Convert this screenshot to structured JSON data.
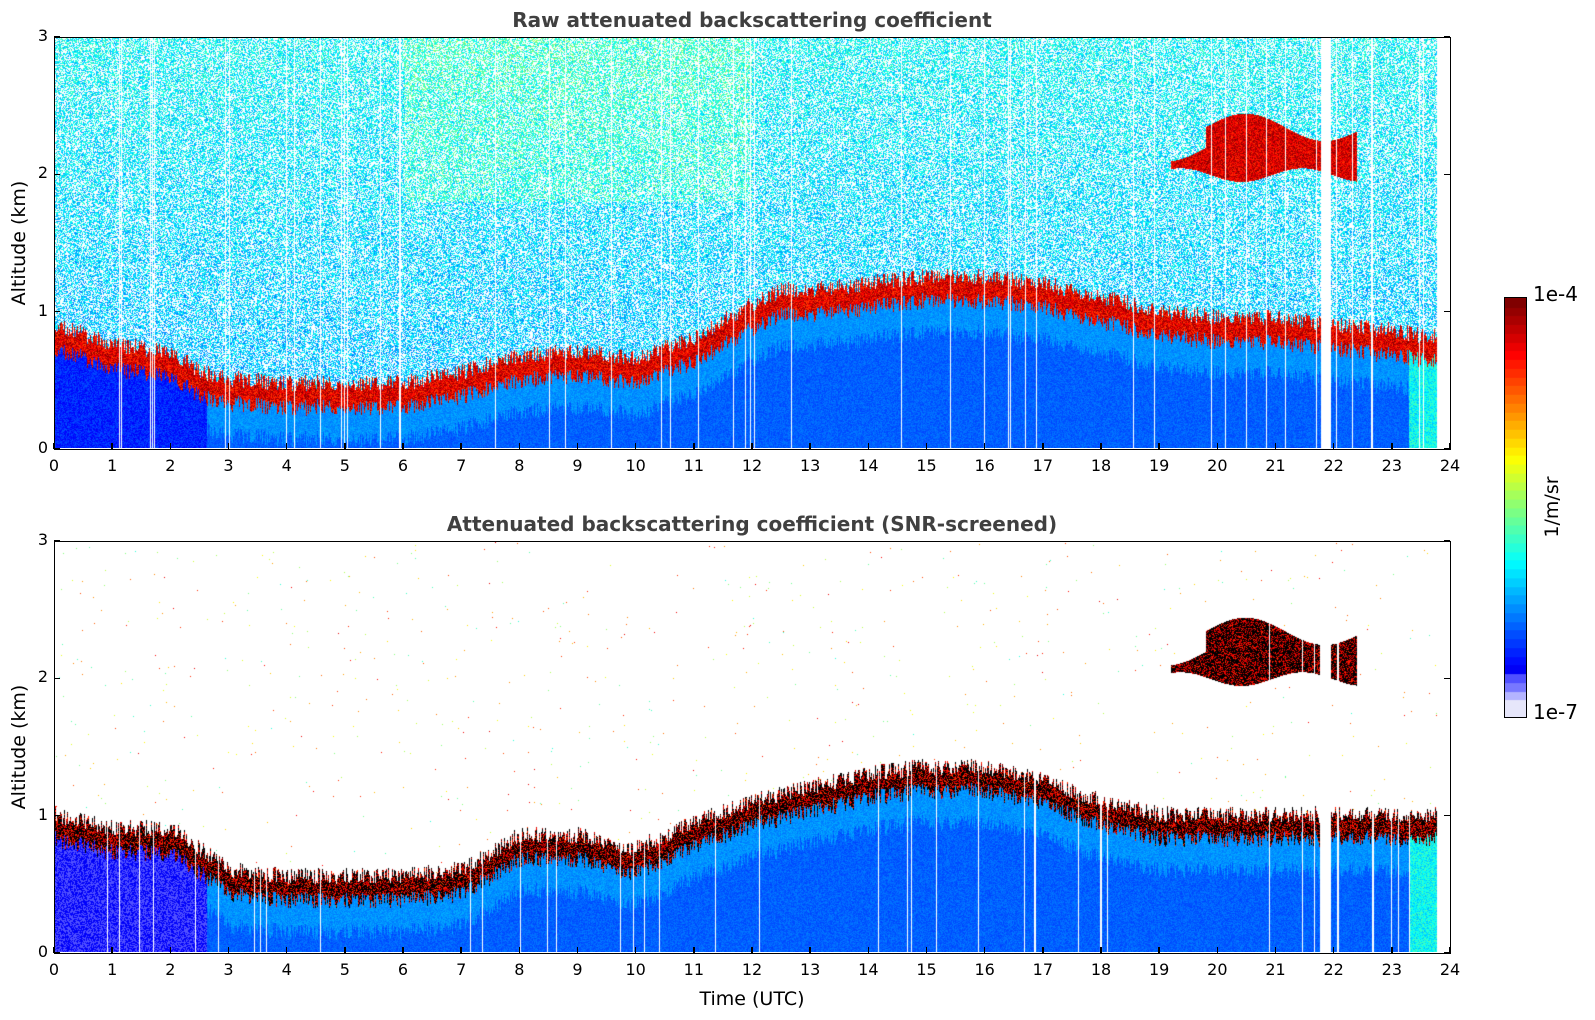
{
  "chart_data": [
    {
      "type": "heatmap",
      "title": "Raw attenuated backscattering coefficient",
      "xlabel": "",
      "ylabel": "Altitude (km)",
      "xlim": [
        0,
        24
      ],
      "ylim": [
        0,
        3
      ],
      "x_ticks": [
        "0",
        "1",
        "2",
        "3",
        "4",
        "5",
        "6",
        "7",
        "8",
        "9",
        "10",
        "11",
        "12",
        "13",
        "14",
        "15",
        "16",
        "17",
        "18",
        "19",
        "20",
        "21",
        "22",
        "23",
        "24"
      ],
      "y_ticks": [
        "0",
        "1",
        "2",
        "3"
      ],
      "data_end_hour": 23.8,
      "boundary_layer_top_km": {
        "hours": [
          0,
          1,
          2,
          2.5,
          3,
          4,
          5,
          6,
          7,
          8,
          9,
          10,
          11,
          12,
          12.5,
          13,
          14,
          15,
          16,
          17,
          18,
          19,
          20,
          21,
          22,
          23,
          23.8
        ],
        "values": [
          0.85,
          0.7,
          0.65,
          0.5,
          0.45,
          0.42,
          0.42,
          0.42,
          0.5,
          0.62,
          0.65,
          0.6,
          0.75,
          1.0,
          1.1,
          1.1,
          1.15,
          1.2,
          1.2,
          1.15,
          1.05,
          0.95,
          0.9,
          0.9,
          0.85,
          0.8,
          0.75
        ]
      },
      "elevated_cloud": {
        "start_hour": 19.2,
        "end_hour": 22.4,
        "altitude_km": [
          2.0,
          2.35
        ]
      },
      "noise": "high"
    },
    {
      "type": "heatmap",
      "title": "Attenuated backscattering coefficient (SNR-screened)",
      "xlabel": "Time (UTC)",
      "ylabel": "Altitude (km)",
      "xlim": [
        0,
        24
      ],
      "ylim": [
        0,
        3
      ],
      "x_ticks": [
        "0",
        "1",
        "2",
        "3",
        "4",
        "5",
        "6",
        "7",
        "8",
        "9",
        "10",
        "11",
        "12",
        "13",
        "14",
        "15",
        "16",
        "17",
        "18",
        "19",
        "20",
        "21",
        "22",
        "23",
        "24"
      ],
      "y_ticks": [
        "0",
        "1",
        "2",
        "3"
      ],
      "data_end_hour": 23.8,
      "boundary_layer_top_km": {
        "hours": [
          0,
          1,
          2,
          2.5,
          3,
          4,
          5,
          6,
          7,
          8,
          9,
          10,
          11,
          12,
          12.5,
          13,
          14,
          15,
          16,
          17,
          18,
          19,
          20,
          21,
          22,
          23,
          23.8
        ],
        "values": [
          0.95,
          0.85,
          0.85,
          0.7,
          0.55,
          0.5,
          0.5,
          0.5,
          0.55,
          0.8,
          0.8,
          0.7,
          0.9,
          1.05,
          1.1,
          1.15,
          1.25,
          1.3,
          1.3,
          1.2,
          1.05,
          0.95,
          0.95,
          0.95,
          0.95,
          0.95,
          0.95
        ]
      },
      "elevated_cloud": {
        "start_hour": 19.2,
        "end_hour": 22.4,
        "altitude_km": [
          2.0,
          2.35
        ]
      },
      "noise": "screened"
    }
  ],
  "colorbar": {
    "max_label": "1e-4",
    "min_label": "1e-7",
    "unit": "1/m/sr",
    "colormap": "jet",
    "low_colors": [
      "#e6e6fa",
      "#b4b4ff",
      "#7878ff",
      "#5050ff"
    ]
  }
}
